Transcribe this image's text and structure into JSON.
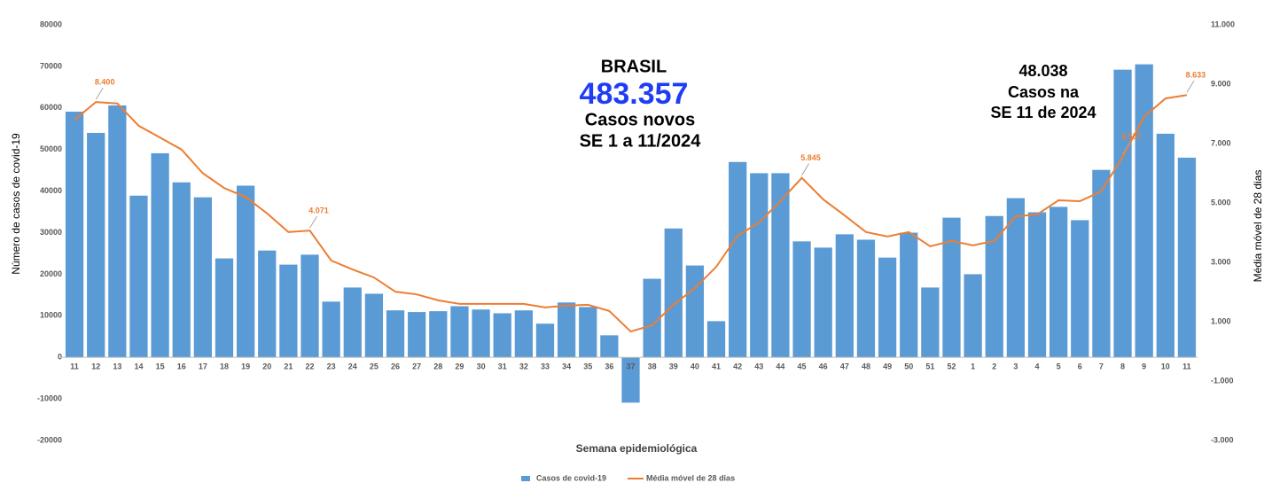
{
  "chart_data": {
    "type": "bar-line",
    "categories": [
      "11",
      "12",
      "13",
      "14",
      "15",
      "16",
      "17",
      "18",
      "19",
      "20",
      "21",
      "22",
      "23",
      "24",
      "25",
      "26",
      "27",
      "28",
      "29",
      "30",
      "31",
      "32",
      "33",
      "34",
      "35",
      "36",
      "37",
      "38",
      "39",
      "40",
      "41",
      "42",
      "43",
      "44",
      "45",
      "46",
      "47",
      "48",
      "49",
      "50",
      "51",
      "52",
      "1",
      "2",
      "3",
      "4",
      "5",
      "6",
      "7",
      "8",
      "9",
      "10",
      "11"
    ],
    "series": [
      {
        "name": "Casos de covid-19",
        "type": "bar",
        "color": "#5b9bd5",
        "values": [
          59100,
          54000,
          60600,
          38900,
          49100,
          42100,
          38500,
          23800,
          41300,
          25700,
          22300,
          24700,
          13400,
          16800,
          15300,
          11300,
          10900,
          11100,
          12300,
          11500,
          10600,
          11300,
          8100,
          13200,
          12100,
          5300,
          -10900,
          18900,
          31000,
          22100,
          8700,
          47000,
          44300,
          44300,
          27900,
          26400,
          29600,
          28300,
          24000,
          30000,
          16800,
          33600,
          20000,
          34000,
          38300,
          34900,
          36200,
          33000,
          45100,
          69200,
          70500,
          53800,
          48038
        ]
      },
      {
        "name": "Média móvel de 28 dias",
        "type": "line",
        "axis": "y2",
        "color": "#ed7d31",
        "values": [
          7800,
          8400,
          8350,
          7600,
          7200,
          6800,
          6000,
          5500,
          5200,
          4650,
          4020,
          4071,
          3060,
          2760,
          2490,
          2010,
          1920,
          1720,
          1600,
          1600,
          1600,
          1600,
          1480,
          1540,
          1570,
          1360,
          670,
          880,
          1570,
          2130,
          2850,
          3900,
          4340,
          5060,
          5845,
          5120,
          4580,
          4020,
          3870,
          4020,
          3540,
          3720,
          3570,
          3720,
          4550,
          4610,
          5090,
          5060,
          5390,
          6557,
          7900,
          8520,
          8633
        ],
        "value_labels": [
          null,
          "8.400",
          null,
          null,
          null,
          null,
          null,
          null,
          null,
          null,
          null,
          "4.071",
          null,
          null,
          null,
          null,
          null,
          null,
          null,
          null,
          null,
          null,
          null,
          null,
          null,
          null,
          null,
          null,
          null,
          null,
          null,
          null,
          null,
          null,
          "5.845",
          null,
          null,
          null,
          null,
          null,
          null,
          null,
          null,
          null,
          null,
          null,
          null,
          null,
          null,
          "6.557",
          null,
          null,
          "8.633"
        ]
      }
    ],
    "ylabel": "Número de casos de covid-19",
    "y2label": "Média móvel de 28 dias",
    "xlabel": "Semana epidemiológica",
    "ylim": [
      -20000,
      80000
    ],
    "yticks": [
      -20000,
      -10000,
      0,
      10000,
      20000,
      30000,
      40000,
      50000,
      60000,
      70000,
      80000
    ],
    "y2lim": [
      -3000,
      11000
    ],
    "y2ticks": [
      {
        "value": -3000,
        "label": "-3.000"
      },
      {
        "value": -1000,
        "label": "-1.000"
      },
      {
        "value": 1000,
        "label": "1.000"
      },
      {
        "value": 3000,
        "label": "3.000"
      },
      {
        "value": 5000,
        "label": "5.000"
      },
      {
        "value": 7000,
        "label": "7.000"
      },
      {
        "value": 9000,
        "label": "9.000"
      },
      {
        "value": 11000,
        "label": "11.000"
      }
    ],
    "annotations": [
      "BRASIL",
      "483.357",
      "Casos novos",
      "SE 1 a 11/2024",
      "48.038",
      "Casos na",
      "SE 11 de 2024"
    ],
    "legend": "bottom"
  }
}
